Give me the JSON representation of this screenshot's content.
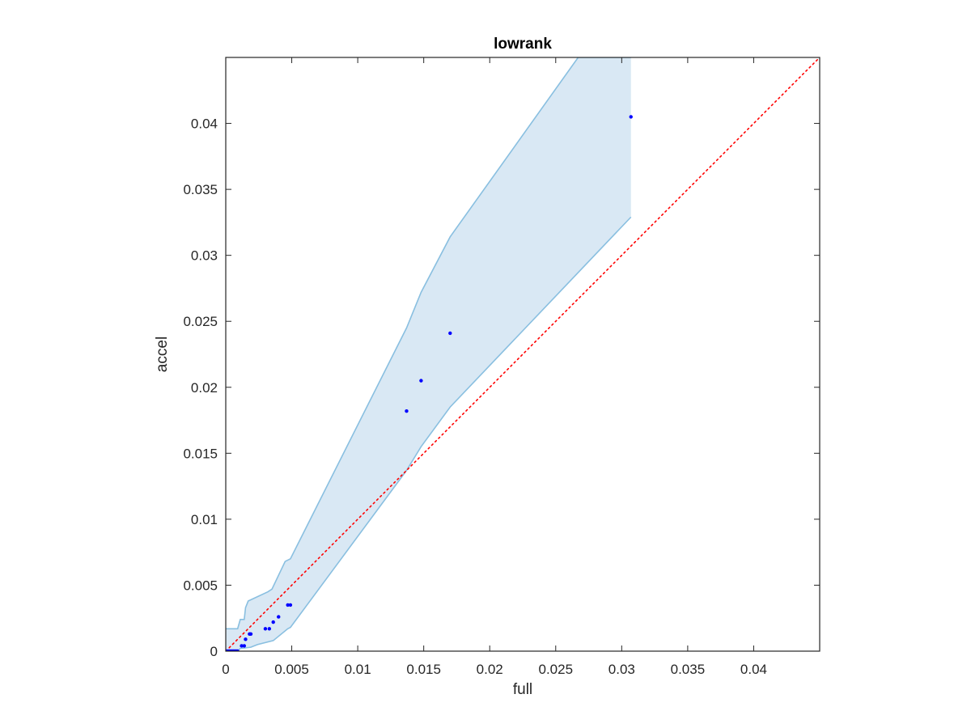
{
  "chart_data": {
    "type": "scatter",
    "title": "lowrank",
    "xlabel": "full",
    "ylabel": "accel",
    "xlim": [
      0,
      0.045
    ],
    "ylim": [
      0,
      0.045
    ],
    "xticks": [
      0,
      0.005,
      0.01,
      0.015,
      0.02,
      0.025,
      0.03,
      0.035,
      0.04
    ],
    "yticks": [
      0,
      0.005,
      0.01,
      0.015,
      0.02,
      0.025,
      0.03,
      0.035,
      0.04
    ],
    "xtick_labels": [
      "0",
      "0.005",
      "0.01",
      "0.015",
      "0.02",
      "0.025",
      "0.03",
      "0.035",
      "0.04"
    ],
    "ytick_labels": [
      "0",
      "0.005",
      "0.01",
      "0.015",
      "0.02",
      "0.025",
      "0.03",
      "0.035",
      "0.04"
    ],
    "grid": false,
    "colors": {
      "points": "#0000ff",
      "band_fill": "#d9e8f4",
      "band_edge": "#89bfe0",
      "reference_line": "#ff0000",
      "axes": "#262626"
    },
    "reference_line": {
      "type": "identity",
      "style": "dotted"
    },
    "points": [
      {
        "x": 0.0,
        "y": 0.0
      },
      {
        "x": 0.0001,
        "y": 0.0
      },
      {
        "x": 0.0002,
        "y": 0.0
      },
      {
        "x": 0.0003,
        "y": 0.0
      },
      {
        "x": 0.0004,
        "y": 0.0
      },
      {
        "x": 0.0005,
        "y": 0.0
      },
      {
        "x": 0.0006,
        "y": 0.0
      },
      {
        "x": 0.0007,
        "y": 0.0
      },
      {
        "x": 0.0008,
        "y": 0.0
      },
      {
        "x": 0.0009,
        "y": 0.0
      },
      {
        "x": 0.0012,
        "y": 0.0004
      },
      {
        "x": 0.0014,
        "y": 0.0004
      },
      {
        "x": 0.0015,
        "y": 0.0009
      },
      {
        "x": 0.0018,
        "y": 0.0013
      },
      {
        "x": 0.0019,
        "y": 0.0013
      },
      {
        "x": 0.003,
        "y": 0.0017
      },
      {
        "x": 0.0033,
        "y": 0.0017
      },
      {
        "x": 0.0036,
        "y": 0.0022
      },
      {
        "x": 0.004,
        "y": 0.0026
      },
      {
        "x": 0.0047,
        "y": 0.0035
      },
      {
        "x": 0.0049,
        "y": 0.0035
      },
      {
        "x": 0.0137,
        "y": 0.0182
      },
      {
        "x": 0.0148,
        "y": 0.0205
      },
      {
        "x": 0.017,
        "y": 0.0241
      },
      {
        "x": 0.0307,
        "y": 0.0405
      }
    ],
    "band": {
      "upper": [
        {
          "x": 0.0,
          "y": 0.0017
        },
        {
          "x": 0.0009,
          "y": 0.0017
        },
        {
          "x": 0.0011,
          "y": 0.0024
        },
        {
          "x": 0.0014,
          "y": 0.0024
        },
        {
          "x": 0.0015,
          "y": 0.0033
        },
        {
          "x": 0.0017,
          "y": 0.0038
        },
        {
          "x": 0.0032,
          "y": 0.0045
        },
        {
          "x": 0.0035,
          "y": 0.0047
        },
        {
          "x": 0.0045,
          "y": 0.0068
        },
        {
          "x": 0.0049,
          "y": 0.007
        },
        {
          "x": 0.0137,
          "y": 0.0245
        },
        {
          "x": 0.0148,
          "y": 0.0272
        },
        {
          "x": 0.017,
          "y": 0.0314
        },
        {
          "x": 0.0267,
          "y": 0.045
        },
        {
          "x": 0.0307,
          "y": 0.045
        }
      ],
      "lower": [
        {
          "x": 0.0,
          "y": 0.0
        },
        {
          "x": 0.0009,
          "y": 0.0
        },
        {
          "x": 0.0011,
          "y": 0.0002
        },
        {
          "x": 0.0019,
          "y": 0.0003
        },
        {
          "x": 0.0024,
          "y": 0.0005
        },
        {
          "x": 0.0036,
          "y": 0.0008
        },
        {
          "x": 0.0047,
          "y": 0.0017
        },
        {
          "x": 0.0049,
          "y": 0.0018
        },
        {
          "x": 0.0137,
          "y": 0.0137
        },
        {
          "x": 0.0148,
          "y": 0.0155
        },
        {
          "x": 0.017,
          "y": 0.0185
        },
        {
          "x": 0.0307,
          "y": 0.0329
        }
      ]
    }
  }
}
